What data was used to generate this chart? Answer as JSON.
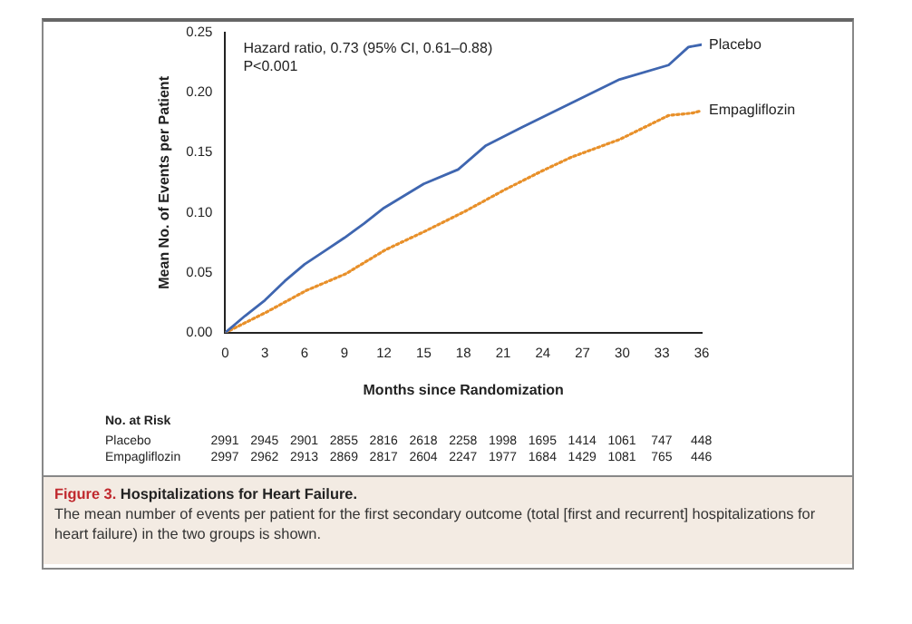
{
  "chart_data": {
    "type": "line",
    "title": "Figure 3. Hospitalizations for Heart Failure.",
    "subtitle": "The mean number of events per patient for the first secondary outcome (total [first and recurrent] hospitalizations for heart failure) in the two groups is shown.",
    "xlabel": "Months since Randomization",
    "ylabel": "Mean No. of Events per Patient",
    "annotations": [
      "Hazard ratio, 0.73 (95% CI, 0.61–0.88)",
      "P<0.001",
      "No. at Risk",
      "Placebo 2991 2945 2901 2855 2816 2618 2258 1998 1695 1414 1061 747 448",
      "Empagliflozin 2997 2962 2913 2869 2817 2604 2247 1977 1684 1429 1081 765 446"
    ],
    "xlim": [
      0,
      36
    ],
    "xticks": [
      0,
      3,
      6,
      9,
      12,
      15,
      18,
      21,
      24,
      27,
      30,
      33,
      36
    ],
    "ylim": [
      0,
      0.25
    ],
    "yticks": [
      {
        "value": 0,
        "label": "0.00"
      },
      {
        "value": 0.05,
        "label": "0.05"
      },
      {
        "value": 0.1,
        "label": "0.10"
      },
      {
        "value": 0.15,
        "label": "0.15"
      },
      {
        "value": 0.2,
        "label": "0.20"
      },
      {
        "value": 0.25,
        "label": "0.25"
      }
    ],
    "grid": false,
    "legend": false,
    "marker": "none",
    "series": [
      {
        "name": "Placebo",
        "color": "#3f66b0",
        "line_style": "solid",
        "x": [
          0,
          1.5,
          3,
          4.5,
          6,
          7.5,
          9,
          10.5,
          12,
          13.5,
          15,
          17.6,
          19.7,
          22.4,
          26.1,
          29.8,
          33.5,
          35,
          36
        ],
        "values": [
          0,
          0.014,
          0.027,
          0.043,
          0.057,
          0.068,
          0.079,
          0.091,
          0.104,
          0.114,
          0.124,
          0.136,
          0.156,
          0.171,
          0.191,
          0.211,
          0.223,
          0.238,
          0.24
        ]
      },
      {
        "name": "Empagliflozin",
        "color": "#e8902a",
        "line_style": "dotted",
        "x": [
          0,
          3.1,
          6.1,
          9.1,
          12.1,
          15,
          18.1,
          21.1,
          23.8,
          26.1,
          29.8,
          33.5,
          35.3,
          36
        ],
        "values": [
          0,
          0.017,
          0.035,
          0.049,
          0.069,
          0.084,
          0.101,
          0.119,
          0.134,
          0.146,
          0.161,
          0.181,
          0.183,
          0.185
        ]
      }
    ]
  }
}
